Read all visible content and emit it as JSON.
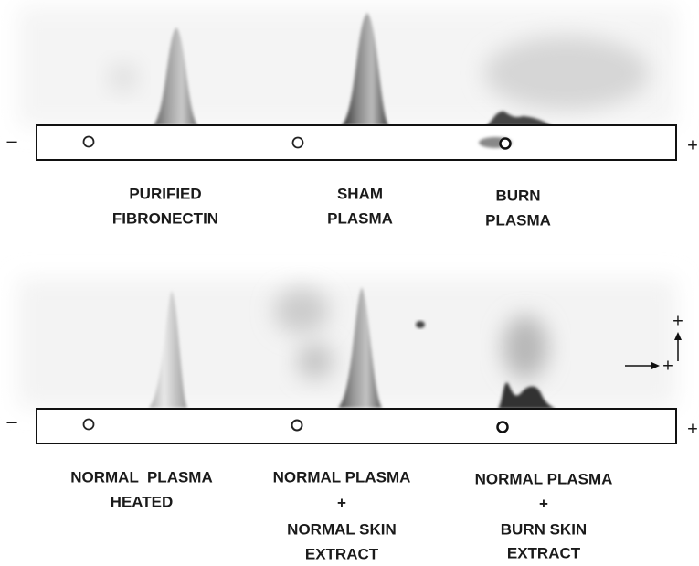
{
  "panels": [
    {
      "left_sign": "–",
      "right_sign": "+",
      "samples": [
        {
          "lines": [
            "PURIFIED",
            "FIBRONECTIN"
          ]
        },
        {
          "lines": [
            "SHAM",
            "PLASMA"
          ]
        },
        {
          "lines": [
            "BURN",
            "PLASMA"
          ]
        }
      ]
    },
    {
      "left_sign": "–",
      "right_sign": "+",
      "samples": [
        {
          "lines": [
            "NORMAL  PLASMA",
            "HEATED"
          ]
        },
        {
          "lines": [
            "NORMAL PLASMA",
            "+",
            "NORMAL SKIN",
            "EXTRACT"
          ]
        },
        {
          "lines": [
            "NORMAL PLASMA",
            "+",
            "BURN SKIN",
            "EXTRACT"
          ]
        }
      ]
    }
  ],
  "direction_labels": [
    "+",
    "+"
  ]
}
